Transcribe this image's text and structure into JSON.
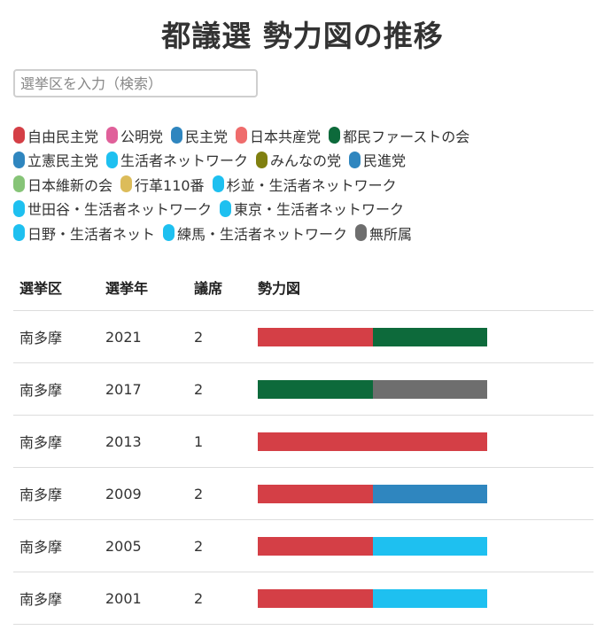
{
  "title": "都議選 勢力図の推移",
  "search": {
    "placeholder": "選挙区を入力（検索）",
    "value": ""
  },
  "legend": [
    [
      {
        "label": "自由民主党",
        "color": "#d43f46"
      },
      {
        "label": "公明党",
        "color": "#e0609a"
      },
      {
        "label": "民主党",
        "color": "#2f86bf"
      },
      {
        "label": "日本共産党",
        "color": "#ef6c6c"
      },
      {
        "label": "都民ファーストの会",
        "color": "#0d6a3b"
      }
    ],
    [
      {
        "label": "立憲民主党",
        "color": "#2f86bf"
      },
      {
        "label": "生活者ネットワーク",
        "color": "#1ec0f0"
      },
      {
        "label": "みんなの党",
        "color": "#808010"
      },
      {
        "label": "民進党",
        "color": "#2f86bf"
      }
    ],
    [
      {
        "label": "日本維新の会",
        "color": "#86c477"
      },
      {
        "label": "行革110番",
        "color": "#dcbc5a"
      },
      {
        "label": "杉並・生活者ネットワーク",
        "color": "#1ec0f0"
      }
    ],
    [
      {
        "label": "世田谷・生活者ネットワーク",
        "color": "#1ec0f0"
      },
      {
        "label": "東京・生活者ネットワーク",
        "color": "#1ec0f0"
      }
    ],
    [
      {
        "label": "日野・生活者ネット",
        "color": "#1ec0f0"
      },
      {
        "label": "練馬・生活者ネットワーク",
        "color": "#1ec0f0"
      },
      {
        "label": "無所属",
        "color": "#6e6e6e"
      }
    ]
  ],
  "table": {
    "headers": {
      "district": "選挙区",
      "year": "選挙年",
      "seats": "議席",
      "chart": "勢力図"
    },
    "rows": [
      {
        "district": "南多摩",
        "year": "2021",
        "seats": "2",
        "segments": [
          {
            "color": "#d43f46",
            "seats": 1
          },
          {
            "color": "#0d6a3b",
            "seats": 1
          }
        ]
      },
      {
        "district": "南多摩",
        "year": "2017",
        "seats": "2",
        "segments": [
          {
            "color": "#0d6a3b",
            "seats": 1
          },
          {
            "color": "#6e6e6e",
            "seats": 1
          }
        ]
      },
      {
        "district": "南多摩",
        "year": "2013",
        "seats": "1",
        "segments": [
          {
            "color": "#d43f46",
            "seats": 1
          }
        ]
      },
      {
        "district": "南多摩",
        "year": "2009",
        "seats": "2",
        "segments": [
          {
            "color": "#d43f46",
            "seats": 1
          },
          {
            "color": "#2f86bf",
            "seats": 1
          }
        ]
      },
      {
        "district": "南多摩",
        "year": "2005",
        "seats": "2",
        "segments": [
          {
            "color": "#d43f46",
            "seats": 1
          },
          {
            "color": "#1ec0f0",
            "seats": 1
          }
        ]
      },
      {
        "district": "南多摩",
        "year": "2001",
        "seats": "2",
        "segments": [
          {
            "color": "#d43f46",
            "seats": 1
          },
          {
            "color": "#1ec0f0",
            "seats": 1
          }
        ]
      }
    ]
  }
}
